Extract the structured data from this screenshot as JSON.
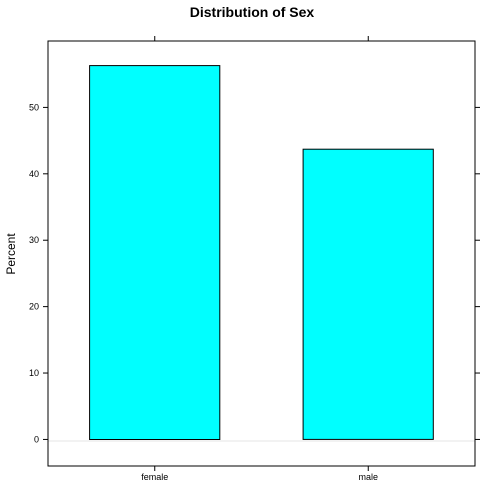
{
  "chart_data": {
    "type": "bar",
    "title": "Distribution of Sex",
    "xlabel": "",
    "ylabel": "Percent",
    "categories": [
      "female",
      "male"
    ],
    "values": [
      56.3,
      43.7
    ],
    "ylim": [
      -4,
      60
    ],
    "yticks": [
      0,
      10,
      20,
      30,
      40,
      50
    ],
    "grid": false,
    "bar_color": "#00ffff",
    "reference_line": 0
  }
}
